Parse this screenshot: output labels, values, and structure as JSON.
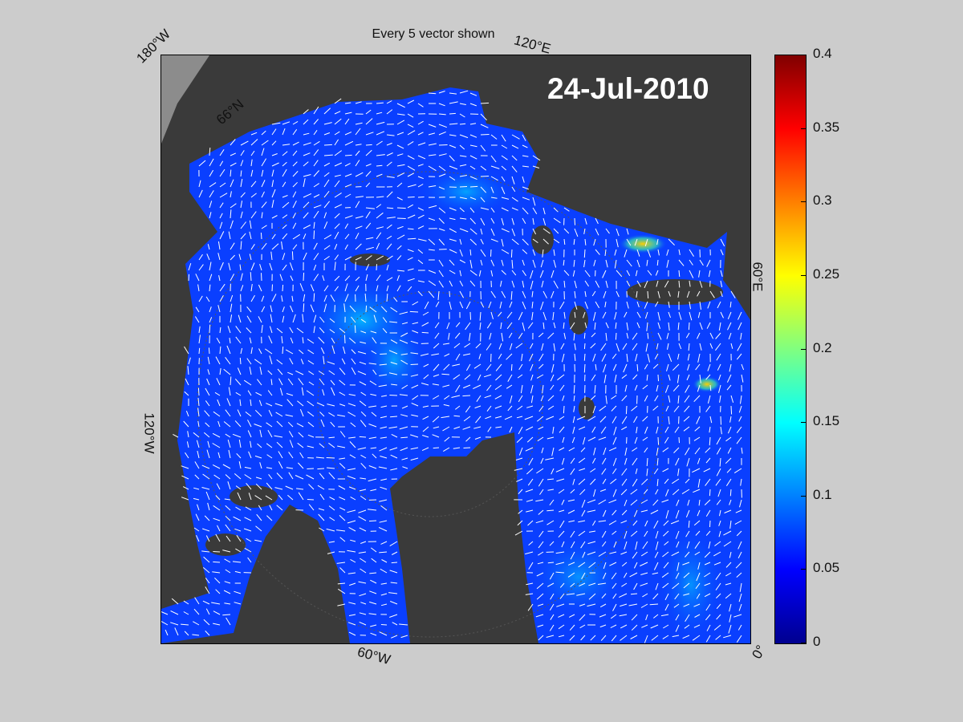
{
  "figure": {
    "title": "Every 5 vector shown",
    "date": "24-Jul-2010"
  },
  "map": {
    "projection": "north-polar-stereographic",
    "field": "sea ice drift speed",
    "vector_stride": 5,
    "graticule_labels": {
      "lon_180w": "180°W",
      "lon_120e": "120°E",
      "lon_60e": "60°E",
      "lon_120w": "120°W",
      "lon_60w": "60°W",
      "lon_0": "0°",
      "lat_66n": "66°N"
    },
    "colors": {
      "land": "#3a3a3a",
      "outside_domain": "#8c8c8c",
      "vectors": "#ffffff",
      "background": "#cccccc"
    }
  },
  "colorbar": {
    "min": 0,
    "max": 0.4,
    "colormap": "jet",
    "ticks": [
      "0",
      "0.05",
      "0.1",
      "0.15",
      "0.2",
      "0.25",
      "0.3",
      "0.35",
      "0.4"
    ]
  }
}
